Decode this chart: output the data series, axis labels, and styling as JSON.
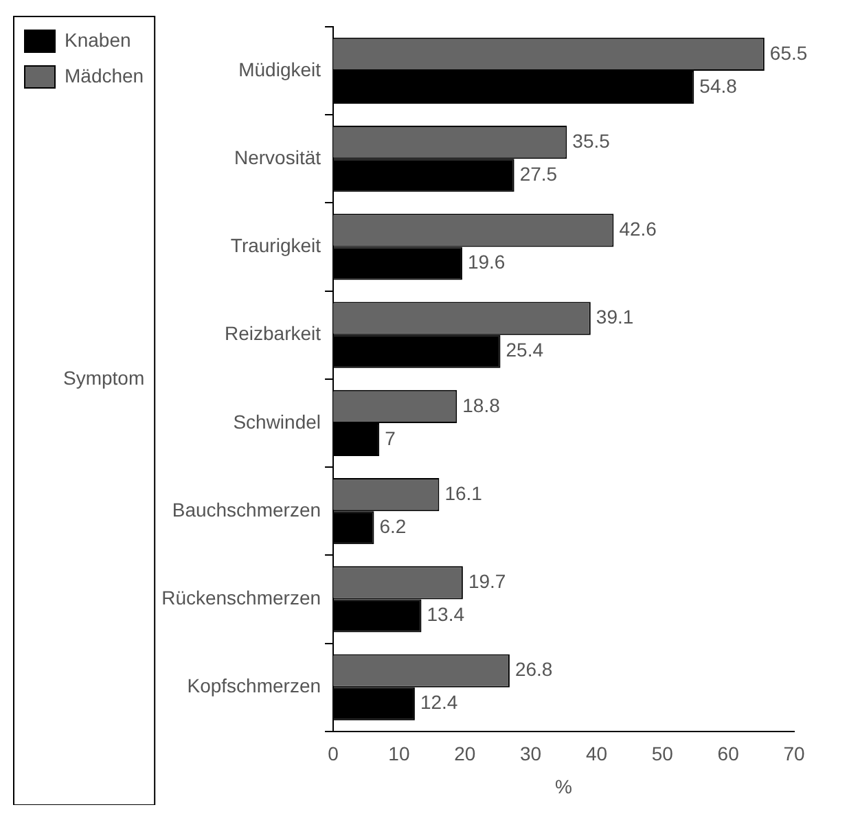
{
  "chart_data": {
    "type": "bar",
    "orientation": "horizontal",
    "xlabel": "%",
    "ylabel": "Symptom",
    "categories": [
      "Müdigkeit",
      "Nervosität",
      "Traurigkeit",
      "Reizbarkeit",
      "Schwindel",
      "Bauchschmerzen",
      "Rückenschmerzen",
      "Kopfschmerzen"
    ],
    "series": [
      {
        "name": "Knaben",
        "color": "#000000",
        "values": [
          54.8,
          27.5,
          19.6,
          25.4,
          7,
          6.2,
          13.4,
          12.4
        ]
      },
      {
        "name": "Mädchen",
        "color": "#666666",
        "values": [
          65.5,
          35.5,
          42.6,
          39.1,
          18.8,
          16.1,
          19.7,
          26.8
        ]
      }
    ],
    "xlim": [
      0,
      70
    ],
    "xticks": [
      0,
      10,
      20,
      30,
      40,
      50,
      60,
      70
    ],
    "data_labels": true,
    "legend": "top left",
    "grid": false
  }
}
